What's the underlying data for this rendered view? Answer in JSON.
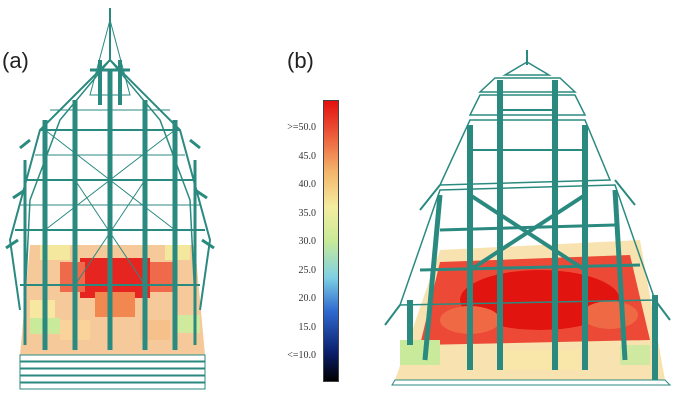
{
  "panels": [
    {
      "id": "a",
      "label": "(a)"
    },
    {
      "id": "b",
      "label": "(b)"
    }
  ],
  "colorbar": {
    "ticks": [
      ">=50.0",
      "45.0",
      "40.0",
      "35.0",
      "30.0",
      "25.0",
      "20.0",
      "15.0",
      "<=10.0"
    ],
    "min_value": 10,
    "max_value": 50,
    "colors": {
      "high": "#e3100f",
      "mid": "#f4eda0",
      "low": "#000000"
    }
  },
  "structure_color": "#2b8a80"
}
